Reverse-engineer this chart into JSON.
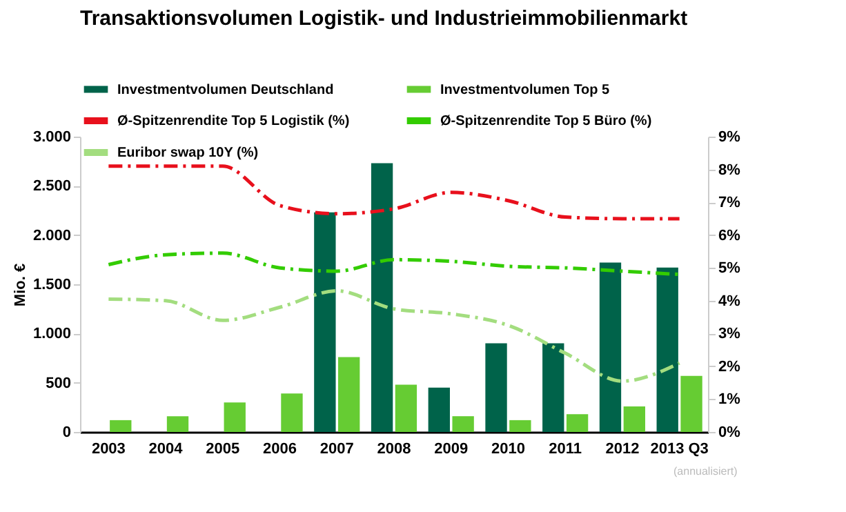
{
  "chart_data": {
    "type": "bar",
    "title": "Transaktionsvolumen Logistik- und Industrieimmobilienmarkt",
    "ylabel": "Mio. €",
    "categories": [
      "2003",
      "2004",
      "2005",
      "2006",
      "2007",
      "2008",
      "2009",
      "2010",
      "2011",
      "2012",
      "2013 Q3"
    ],
    "series": [
      {
        "name": "Investmentvolumen Deutschland",
        "color": "#00634a",
        "values": [
          null,
          null,
          null,
          null,
          2230,
          2730,
          450,
          900,
          900,
          1720,
          1670
        ]
      },
      {
        "name": "Investmentvolumen Top 5",
        "color": "#66cc33",
        "values": [
          120,
          160,
          300,
          390,
          760,
          480,
          160,
          120,
          180,
          260,
          570
        ]
      },
      {
        "name": "Ø-Spitzenrendite Top 5 Logistik (%)",
        "type": "line",
        "axis": "y2",
        "line_style": "dashed",
        "color": "#e8101c",
        "values": [
          8.1,
          8.1,
          8.1,
          6.9,
          6.65,
          6.8,
          7.3,
          7.05,
          6.55,
          6.5,
          6.5
        ]
      },
      {
        "name": "Ø-Spitzenrendite Top 5 Büro (%)",
        "type": "line",
        "axis": "y2",
        "line_style": "dashed",
        "color": "#33cc00",
        "values": [
          5.1,
          5.4,
          5.45,
          5.0,
          4.9,
          5.25,
          5.2,
          5.05,
          5.0,
          4.9,
          4.8
        ]
      },
      {
        "name": "Euribor swap 10Y (%)",
        "type": "line",
        "axis": "y2",
        "line_style": "dashed",
        "color": "#a3dd7f",
        "values": [
          4.05,
          4.0,
          3.4,
          3.8,
          4.3,
          3.75,
          3.6,
          3.25,
          2.4,
          1.55,
          2.1
        ]
      }
    ],
    "ylim": [
      0,
      3000
    ],
    "yticks": [
      {
        "value": 0,
        "label": "0"
      },
      {
        "value": 500,
        "label": "500"
      },
      {
        "value": 1000,
        "label": "1.000"
      },
      {
        "value": 1500,
        "label": "1.500"
      },
      {
        "value": 2000,
        "label": "2.000"
      },
      {
        "value": 2500,
        "label": "2.500"
      },
      {
        "value": 3000,
        "label": "3.000"
      }
    ],
    "y2lim": [
      0,
      9
    ],
    "y2ticks": [
      {
        "value": 0,
        "label": "0%"
      },
      {
        "value": 1,
        "label": "1%"
      },
      {
        "value": 2,
        "label": "2%"
      },
      {
        "value": 3,
        "label": "3%"
      },
      {
        "value": 4,
        "label": "4%"
      },
      {
        "value": 5,
        "label": "5%"
      },
      {
        "value": 6,
        "label": "6%"
      },
      {
        "value": 7,
        "label": "7%"
      },
      {
        "value": 8,
        "label": "8%"
      },
      {
        "value": 9,
        "label": "9%"
      }
    ],
    "annotations": [
      "(annualisiert)"
    ],
    "legend": "top",
    "grid": false
  }
}
